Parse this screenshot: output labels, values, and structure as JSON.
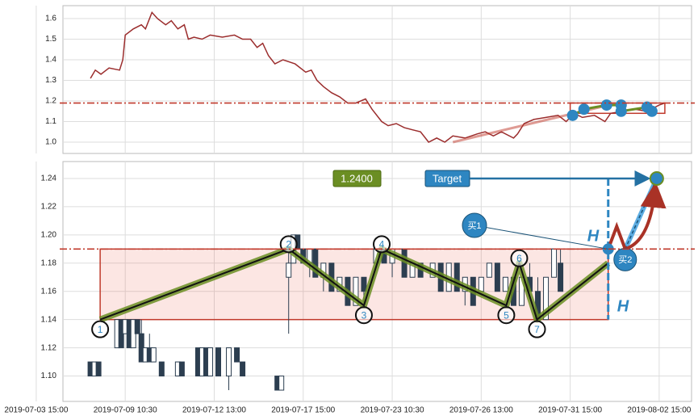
{
  "chart_data": [
    {
      "type": "line",
      "x": [
        67,
        73,
        80,
        90,
        103,
        107,
        110,
        120,
        130,
        135,
        143,
        150,
        160,
        167,
        175,
        183,
        188,
        195,
        205,
        215,
        230,
        245,
        255,
        265,
        273,
        280,
        287,
        295,
        305,
        320,
        333,
        340,
        347,
        355,
        365,
        375,
        385,
        395,
        407,
        415,
        427,
        435,
        445,
        455,
        465,
        475,
        485,
        495,
        505,
        515,
        530,
        545,
        555,
        565,
        575,
        590,
        595,
        603,
        615,
        630,
        645,
        655,
        665,
        675,
        690,
        703,
        710,
        725,
        740,
        755,
        770,
        777
      ],
      "series": [
        {
          "color": "#9b2d2d",
          "values": [
            1.31,
            1.35,
            1.33,
            1.36,
            1.35,
            1.4,
            1.52,
            1.55,
            1.57,
            1.55,
            1.63,
            1.6,
            1.57,
            1.59,
            1.55,
            1.57,
            1.5,
            1.51,
            1.5,
            1.52,
            1.51,
            1.52,
            1.5,
            1.5,
            1.46,
            1.48,
            1.42,
            1.38,
            1.4,
            1.38,
            1.34,
            1.35,
            1.3,
            1.27,
            1.24,
            1.22,
            1.19,
            1.19,
            1.21,
            1.16,
            1.1,
            1.08,
            1.09,
            1.07,
            1.06,
            1.05,
            1.0,
            1.02,
            1.0,
            1.03,
            1.02,
            1.04,
            1.05,
            1.03,
            1.05,
            1.02,
            1.04,
            1.09,
            1.11,
            1.12,
            1.13,
            1.1,
            1.14,
            1.12,
            1.13,
            1.1,
            1.14,
            1.15,
            1.16,
            1.15,
            1.18,
            1.19
          ]
        }
      ],
      "xlim": [
        33,
        810
      ],
      "ylim": [
        0.945,
        1.663
      ],
      "yticks": [
        {
          "value": 1,
          "label": "1.0"
        },
        1.1,
        1.2,
        1.3,
        1.4,
        1.5,
        1.6
      ],
      "grid": true,
      "hline": {
        "value": 1.19,
        "color": "#c0392b"
      },
      "zone": {
        "x": [
          660,
          777
        ],
        "y": [
          1.14,
          1.19
        ],
        "color": "#c0392b"
      },
      "markers": {
        "x": [
          663,
          677,
          705,
          723,
          723,
          755,
          761
        ],
        "values": [
          1.13,
          1.16,
          1.18,
          1.18,
          1.15,
          1.17,
          1.15
        ],
        "color": "#2e86c1"
      }
    },
    {
      "type": "candlestick",
      "x": [
        22,
        67,
        72,
        77,
        100,
        105,
        110,
        115,
        120,
        125,
        130,
        135,
        140,
        145,
        155,
        175,
        180,
        200,
        205,
        210,
        215,
        225,
        238,
        248,
        255,
        298,
        303,
        312,
        318,
        323,
        330,
        338,
        345,
        355,
        365,
        375,
        385,
        395,
        405,
        420,
        430,
        440,
        455,
        465,
        475,
        490,
        500,
        510,
        520,
        530,
        540,
        550,
        560,
        570,
        580,
        590,
        600,
        610,
        620,
        630,
        640,
        648
      ],
      "open": [
        null,
        1.11,
        1.1,
        1.11,
        1.12,
        1.14,
        1.13,
        1.14,
        1.12,
        1.14,
        1.13,
        1.11,
        1.12,
        1.11,
        1.11,
        1.1,
        1.11,
        1.12,
        1.1,
        1.12,
        1.1,
        1.12,
        1.1,
        1.12,
        1.11,
        1.1,
        1.09,
        1.17,
        1.18,
        1.2,
        1.19,
        1.18,
        1.19,
        1.17,
        1.18,
        1.16,
        1.17,
        1.15,
        1.17,
        1.18,
        1.19,
        1.18,
        1.19,
        1.17,
        1.18,
        1.17,
        1.18,
        1.16,
        1.18,
        1.16,
        1.17,
        1.16,
        1.17,
        1.18,
        1.16,
        1.17,
        1.15,
        1.17,
        1.16,
        1.14,
        1.17,
        1.18
      ],
      "high": [
        null,
        1.11,
        1.11,
        1.11,
        1.14,
        1.14,
        1.14,
        1.14,
        1.14,
        1.14,
        1.14,
        1.12,
        1.13,
        1.12,
        1.11,
        1.11,
        1.11,
        1.12,
        1.12,
        1.12,
        1.12,
        1.12,
        1.12,
        1.12,
        1.11,
        1.1,
        1.1,
        1.19,
        1.2,
        1.2,
        1.19,
        1.19,
        1.19,
        1.18,
        1.18,
        1.17,
        1.17,
        1.17,
        1.17,
        1.19,
        1.19,
        1.19,
        1.19,
        1.18,
        1.18,
        1.18,
        1.18,
        1.18,
        1.18,
        1.17,
        1.17,
        1.17,
        1.18,
        1.18,
        1.17,
        1.17,
        1.17,
        1.18,
        1.17,
        1.17,
        1.19,
        1.19
      ],
      "low": [
        null,
        1.1,
        1.1,
        1.1,
        1.12,
        1.12,
        1.13,
        1.12,
        1.12,
        1.13,
        1.11,
        1.11,
        1.11,
        1.11,
        1.1,
        1.1,
        1.1,
        1.1,
        1.1,
        1.1,
        1.1,
        1.1,
        1.09,
        1.11,
        1.1,
        1.09,
        1.09,
        1.13,
        1.18,
        1.19,
        1.18,
        1.17,
        1.17,
        1.16,
        1.16,
        1.16,
        1.15,
        1.15,
        1.15,
        1.18,
        1.18,
        1.17,
        1.17,
        1.17,
        1.17,
        1.17,
        1.16,
        1.16,
        1.16,
        1.15,
        1.15,
        1.16,
        1.17,
        1.16,
        1.16,
        1.15,
        1.15,
        1.16,
        1.14,
        1.14,
        1.17,
        1.16
      ],
      "close": [
        null,
        1.1,
        1.11,
        1.1,
        1.14,
        1.12,
        1.14,
        1.12,
        1.14,
        1.13,
        1.11,
        1.12,
        1.11,
        1.12,
        1.1,
        1.11,
        1.1,
        1.1,
        1.12,
        1.1,
        1.12,
        1.1,
        1.12,
        1.11,
        1.1,
        1.09,
        1.1,
        1.18,
        1.2,
        1.19,
        1.18,
        1.19,
        1.17,
        1.18,
        1.16,
        1.17,
        1.15,
        1.17,
        1.16,
        1.19,
        1.18,
        1.19,
        1.17,
        1.18,
        1.17,
        1.18,
        1.16,
        1.18,
        1.16,
        1.17,
        1.15,
        1.17,
        1.18,
        1.16,
        1.17,
        1.15,
        1.17,
        1.16,
        1.14,
        1.17,
        1.19,
        1.16
      ],
      "xlim": [
        33,
        810
      ],
      "ylim": [
        1.082,
        1.252
      ],
      "xticks": [
        {
          "value": 0,
          "label": "2019-07-03 15:00"
        },
        {
          "value": 110,
          "label": "2019-07-09 10:30"
        },
        {
          "value": 220,
          "label": "2019-07-12 13:00"
        },
        {
          "value": 330,
          "label": "2019-07-17 15:00"
        },
        {
          "value": 440,
          "label": "2019-07-23 10:30"
        },
        {
          "value": 550,
          "label": "2019-07-26 13:00"
        },
        {
          "value": 660,
          "label": "2019-07-31 15:00"
        },
        {
          "value": 770,
          "label": "2019-08-02 15:00"
        }
      ],
      "yticks": [
        {
          "value": 1.1,
          "label": "1.10"
        },
        1.12,
        1.14,
        1.16,
        1.18,
        {
          "value": 1.2,
          "label": "1.20"
        },
        1.22,
        1.24
      ],
      "grid": true,
      "hline": {
        "value": 1.19,
        "color": "#c0392b"
      },
      "zone": {
        "x": [
          79,
          707
        ],
        "y": [
          1.14,
          1.19
        ],
        "color": "#c0392b"
      },
      "pattern": {
        "x": [
          79,
          312,
          405,
          427,
          581,
          597,
          619,
          707
        ],
        "values": [
          1.14,
          1.19,
          1.15,
          1.19,
          1.15,
          1.18,
          1.14,
          1.18
        ],
        "labels": [
          "1",
          "2",
          "3",
          "4",
          "5",
          "6",
          "7",
          null
        ]
      },
      "price_label": "1.2400",
      "target": {
        "label": "Target",
        "x": 767,
        "value": 1.24
      },
      "buy_points": [
        {
          "label": "买1",
          "x": 707,
          "value": 1.19
        },
        {
          "label": "买2",
          "x": 728,
          "value": 1.19
        }
      ],
      "h_labels": [
        "H",
        "H"
      ]
    }
  ]
}
